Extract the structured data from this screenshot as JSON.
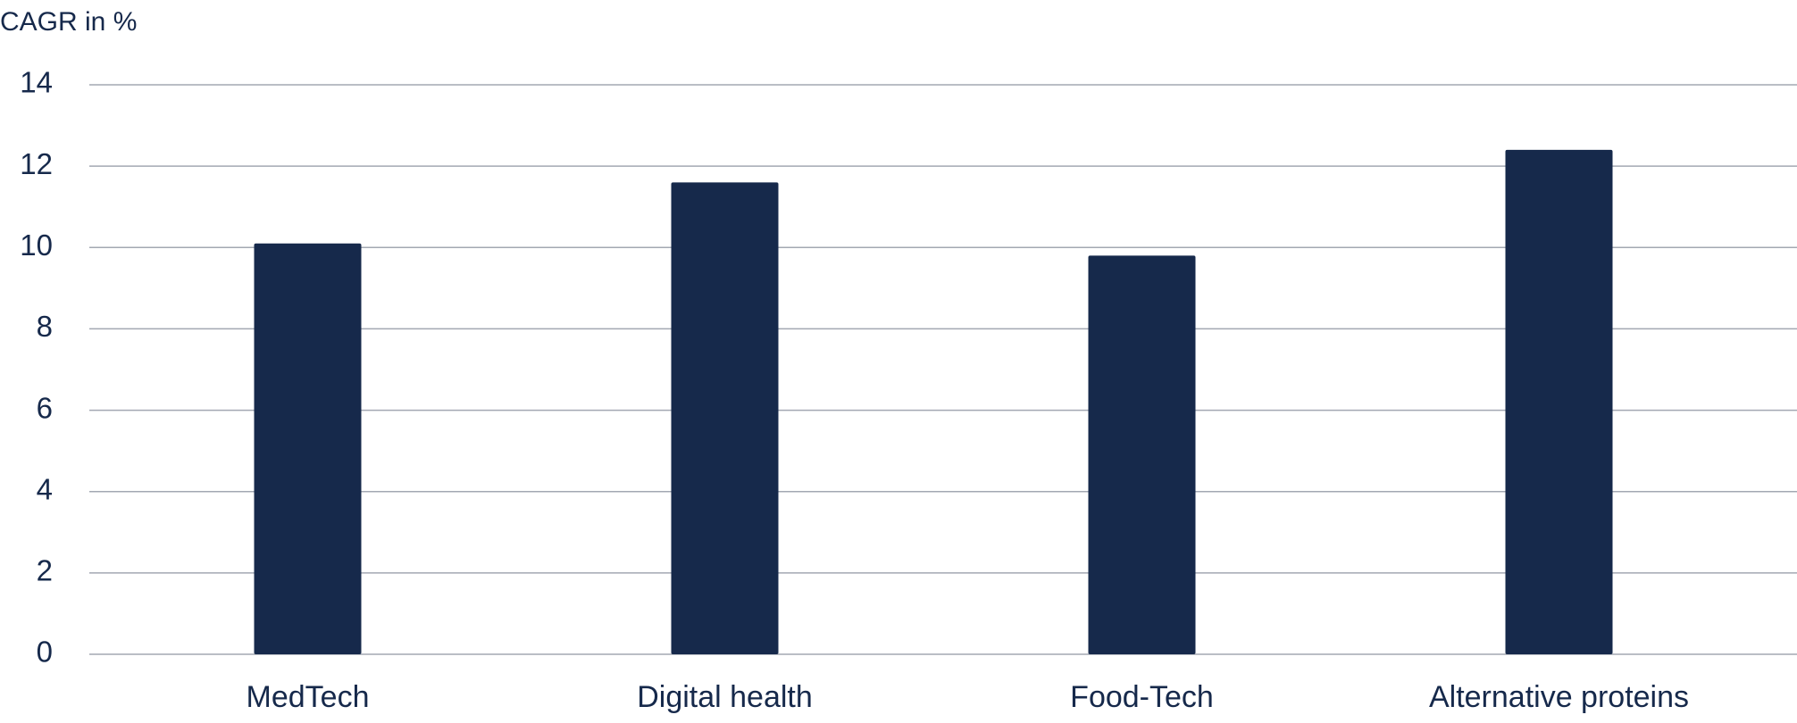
{
  "chart_data": {
    "type": "bar",
    "y_label": "CAGR in %",
    "categories": [
      "MedTech",
      "Digital health",
      "Food-Tech",
      "Alternative proteins"
    ],
    "values": [
      10.1,
      11.6,
      9.8,
      12.4
    ],
    "color": "#16294b",
    "ylim": [
      0,
      14
    ],
    "yticks": [
      0,
      2,
      4,
      6,
      8,
      10,
      12,
      14
    ],
    "grid": true
  }
}
